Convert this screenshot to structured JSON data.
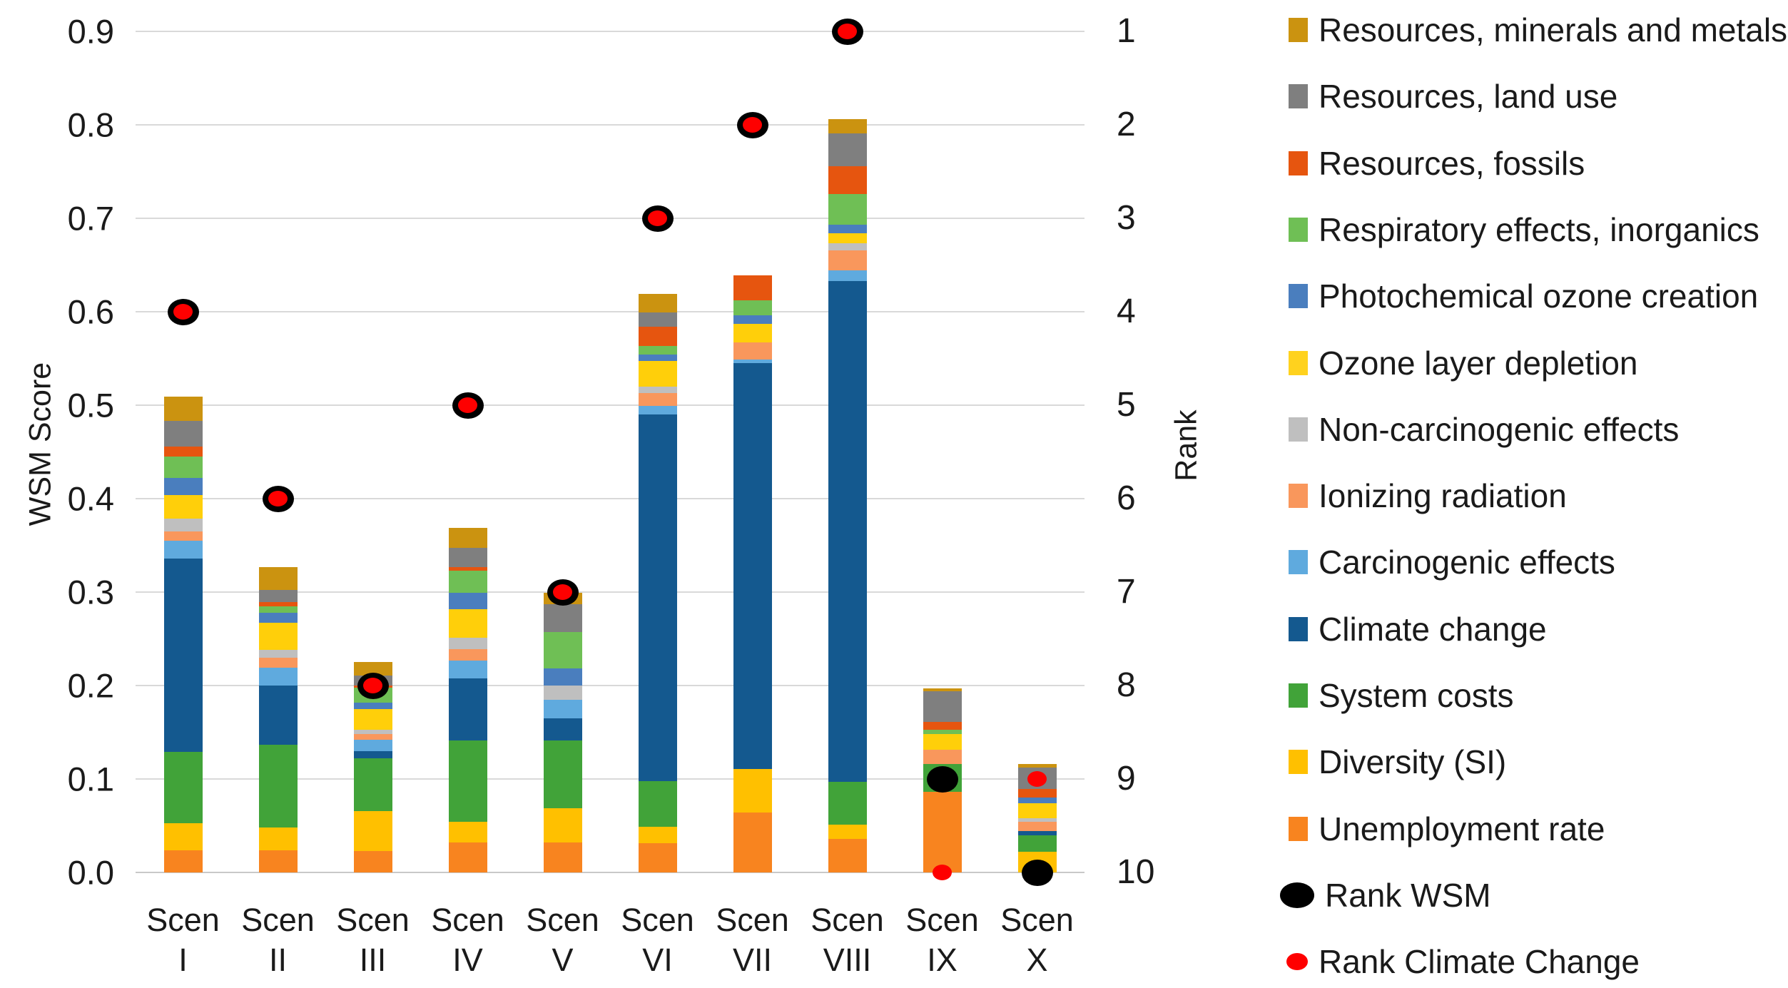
{
  "figure": {
    "left_axis": {
      "title": "WSM Score",
      "ticks": [
        "0.9",
        "0.8",
        "0.7",
        "0.6",
        "0.5",
        "0.4",
        "0.3",
        "0.2",
        "0.1",
        "0.0"
      ],
      "min": 0.0,
      "max": 0.9
    },
    "right_axis": {
      "title": "Rank",
      "ticks": [
        "1",
        "2",
        "3",
        "4",
        "5",
        "6",
        "7",
        "8",
        "9",
        "10"
      ]
    },
    "x_axis": {
      "labels": [
        [
          "Scen",
          "I"
        ],
        [
          "Scen",
          "II"
        ],
        [
          "Scen",
          "III"
        ],
        [
          "Scen",
          "IV"
        ],
        [
          "Scen",
          "V"
        ],
        [
          "Scen",
          "VI"
        ],
        [
          "Scen",
          "VII"
        ],
        [
          "Scen",
          "VIII"
        ],
        [
          "Scen",
          "IX"
        ],
        [
          "Scen",
          "X"
        ]
      ]
    }
  },
  "chart_data": {
    "type": "bar",
    "subtype": "stacked-bars-with-rank-scatter",
    "title": "",
    "xlabel": "",
    "ylabel_left": "WSM Score",
    "ylabel_right": "Rank",
    "ylim_left": [
      0.0,
      0.9
    ],
    "ylim_right_rank": [
      1,
      10
    ],
    "grid": true,
    "legend_position": "right",
    "categories": [
      "Scen I",
      "Scen II",
      "Scen III",
      "Scen IV",
      "Scen V",
      "Scen VI",
      "Scen VII",
      "Scen VIII",
      "Scen IX",
      "Scen X"
    ],
    "stack_order": "bottom_to_top",
    "series": [
      {
        "key": "unemployment",
        "name": "Unemployment rate",
        "color": "#F8841F",
        "values": [
          0.024,
          0.024,
          0.023,
          0.032,
          0.032,
          0.031,
          0.064,
          0.036,
          0.086,
          0.0
        ]
      },
      {
        "key": "diversity",
        "name": "Diversity (SI)",
        "color": "#FFC000",
        "values": [
          0.029,
          0.024,
          0.043,
          0.022,
          0.037,
          0.018,
          0.047,
          0.015,
          0.0,
          0.022
        ]
      },
      {
        "key": "system",
        "name": "System costs",
        "color": "#41A339",
        "values": [
          0.076,
          0.089,
          0.056,
          0.087,
          0.072,
          0.049,
          0.0,
          0.046,
          0.03,
          0.018
        ]
      },
      {
        "key": "climate",
        "name": "Climate change",
        "color": "#14598F",
        "values": [
          0.207,
          0.063,
          0.008,
          0.067,
          0.024,
          0.392,
          0.434,
          0.536,
          0.0,
          0.004
        ]
      },
      {
        "key": "carcinogenic",
        "name": "Carcinogenic effects",
        "color": "#5FAADE",
        "values": [
          0.019,
          0.019,
          0.012,
          0.019,
          0.02,
          0.009,
          0.004,
          0.011,
          0.0,
          0.0
        ]
      },
      {
        "key": "ionizing",
        "name": "Ionizing radiation",
        "color": "#F9975C",
        "values": [
          0.01,
          0.011,
          0.006,
          0.012,
          0.0,
          0.014,
          0.018,
          0.022,
          0.015,
          0.01
        ]
      },
      {
        "key": "noncarc",
        "name": "Non-carcinogenic effects",
        "color": "#BFBFBF",
        "values": [
          0.014,
          0.008,
          0.005,
          0.012,
          0.015,
          0.007,
          0.0,
          0.007,
          0.0,
          0.004
        ]
      },
      {
        "key": "ozone",
        "name": "Ozone layer depletion",
        "color": "#FFCF0A",
        "values": [
          0.025,
          0.029,
          0.022,
          0.031,
          0.0,
          0.027,
          0.02,
          0.011,
          0.017,
          0.016
        ]
      },
      {
        "key": "photochem",
        "name": "Photochemical ozone creation",
        "color": "#4A7EBE",
        "values": [
          0.018,
          0.011,
          0.007,
          0.017,
          0.018,
          0.007,
          0.009,
          0.009,
          0.0,
          0.006
        ]
      },
      {
        "key": "respiratory",
        "name": "Respiratory effects, inorganics",
        "color": "#6FBF55",
        "values": [
          0.023,
          0.007,
          0.016,
          0.024,
          0.039,
          0.009,
          0.016,
          0.033,
          0.005,
          0.0
        ]
      },
      {
        "key": "fossils",
        "name": "Resources, fossils",
        "color": "#E6550F",
        "values": [
          0.011,
          0.004,
          0.002,
          0.004,
          0.0,
          0.021,
          0.027,
          0.03,
          0.008,
          0.009
        ]
      },
      {
        "key": "landuse",
        "name": "Resources, land use",
        "color": "#7F7F7F",
        "values": [
          0.027,
          0.013,
          0.011,
          0.02,
          0.03,
          0.015,
          0.0,
          0.035,
          0.033,
          0.023
        ]
      },
      {
        "key": "minerals",
        "name": "Resources, minerals and metals",
        "color": "#CB9310",
        "values": [
          0.026,
          0.025,
          0.014,
          0.022,
          0.012,
          0.02,
          0.0,
          0.015,
          0.003,
          0.004
        ]
      }
    ],
    "bar_totals": [
      0.51,
      0.33,
      0.23,
      0.37,
      0.3,
      0.62,
      0.64,
      0.81,
      0.2,
      0.12
    ],
    "scatter": [
      {
        "key": "rank_wsm",
        "name": "Rank WSM",
        "color": "#000000",
        "marker": "large-ellipse",
        "ranks": [
          4,
          6,
          8,
          5,
          7,
          3,
          2,
          1,
          9,
          10
        ]
      },
      {
        "key": "rank_cc",
        "name": "Rank Climate Change",
        "color": "#FE0000",
        "marker": "small-ellipse",
        "ranks": [
          4,
          6,
          8,
          5,
          7,
          3,
          2,
          1,
          10,
          9
        ]
      }
    ]
  },
  "legend": {
    "items": [
      {
        "label": "Resources, minerals and metals",
        "color": "#CB9310",
        "marker": "square"
      },
      {
        "label": "Resources, land use",
        "color": "#7F7F7F",
        "marker": "square"
      },
      {
        "label": "Resources, fossils",
        "color": "#E6550F",
        "marker": "square"
      },
      {
        "label": "Respiratory effects, inorganics",
        "color": "#6FBF55",
        "marker": "square"
      },
      {
        "label": "Photochemical ozone creation",
        "color": "#4A7EBE",
        "marker": "square"
      },
      {
        "label": "Ozone layer depletion",
        "color": "#FFD21E",
        "marker": "square"
      },
      {
        "label": "Non-carcinogenic effects",
        "color": "#BFBFBF",
        "marker": "square"
      },
      {
        "label": "Ionizing radiation",
        "color": "#F9975C",
        "marker": "square"
      },
      {
        "label": "Carcinogenic effects",
        "color": "#5FAADE",
        "marker": "square"
      },
      {
        "label": "Climate change",
        "color": "#14598F",
        "marker": "square"
      },
      {
        "label": "System costs",
        "color": "#41A339",
        "marker": "square"
      },
      {
        "label": "Diversity (SI)",
        "color": "#FFC000",
        "marker": "square"
      },
      {
        "label": "Unemployment rate",
        "color": "#F8841F",
        "marker": "square"
      },
      {
        "label": "Rank WSM",
        "color": "#000000",
        "marker": "large-ellipse"
      },
      {
        "label": "Rank Climate Change",
        "color": "#FE0000",
        "marker": "small-ellipse"
      }
    ]
  },
  "colors": {
    "gridline": "#d9d9d9",
    "axis_line": "#c9c9c9",
    "text": "#1a1a1a",
    "background": "#ffffff"
  }
}
